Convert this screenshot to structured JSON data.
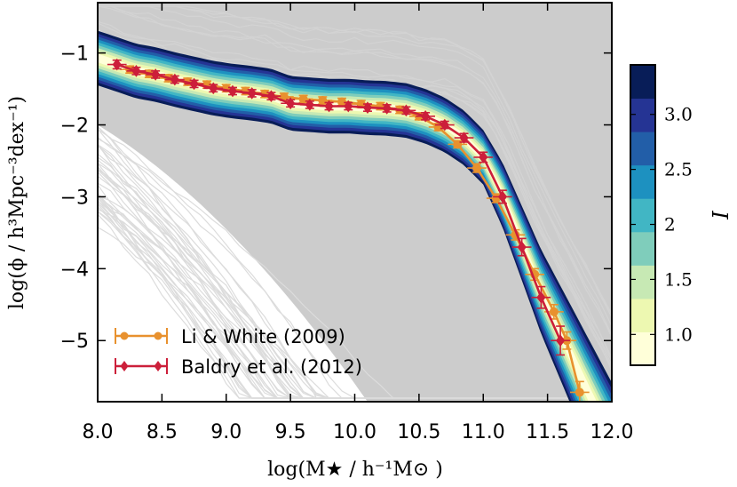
{
  "chart_data": {
    "type": "line",
    "xlabel": "log(M★ / h⁻¹M⊙ )",
    "ylabel": "log(ϕ / h³Mpc⁻³dex⁻¹)",
    "xlim": [
      8.0,
      12.0
    ],
    "ylim": [
      -5.85,
      -0.3
    ],
    "x_ticks": [
      8.0,
      8.5,
      9.0,
      9.5,
      10.0,
      10.5,
      11.0,
      11.5,
      12.0
    ],
    "x_tick_labels": [
      "8.0",
      "8.5",
      "9.0",
      "9.5",
      "10.0",
      "10.5",
      "11.0",
      "11.5",
      "12.0"
    ],
    "y_ticks": [
      -1,
      -2,
      -3,
      -4,
      -5
    ],
    "y_tick_labels": [
      "−1",
      "−2",
      "−3",
      "−4",
      "−5"
    ],
    "series": [
      {
        "name": "Li & White (2009)",
        "color": "#e8912e",
        "x": [
          8.25,
          8.4,
          8.55,
          8.7,
          8.85,
          9.0,
          9.15,
          9.3,
          9.45,
          9.6,
          9.75,
          9.9,
          10.05,
          10.2,
          10.35,
          10.5,
          10.65,
          10.8,
          10.95,
          11.1,
          11.25,
          11.4,
          11.55,
          11.65,
          11.75
        ],
        "y": [
          -1.23,
          -1.29,
          -1.35,
          -1.4,
          -1.44,
          -1.49,
          -1.53,
          -1.57,
          -1.61,
          -1.64,
          -1.66,
          -1.68,
          -1.71,
          -1.74,
          -1.79,
          -1.88,
          -2.03,
          -2.27,
          -2.6,
          -3.02,
          -3.53,
          -4.08,
          -4.6,
          -5.0,
          -5.72
        ],
        "yerr": [
          0.05,
          0.05,
          0.05,
          0.05,
          0.05,
          0.05,
          0.05,
          0.05,
          0.05,
          0.05,
          0.05,
          0.05,
          0.05,
          0.05,
          0.05,
          0.05,
          0.05,
          0.05,
          0.06,
          0.06,
          0.07,
          0.08,
          0.1,
          0.12,
          0.15
        ],
        "xerr": 0.075
      },
      {
        "name": "Baldry et al. (2012)",
        "color": "#cc1f3a",
        "x": [
          8.15,
          8.3,
          8.45,
          8.6,
          8.75,
          8.9,
          9.05,
          9.2,
          9.35,
          9.5,
          9.65,
          9.8,
          9.95,
          10.1,
          10.25,
          10.4,
          10.55,
          10.7,
          10.85,
          11.0,
          11.15,
          11.3,
          11.45,
          11.6
        ],
        "y": [
          -1.16,
          -1.25,
          -1.3,
          -1.37,
          -1.43,
          -1.49,
          -1.53,
          -1.56,
          -1.6,
          -1.7,
          -1.72,
          -1.74,
          -1.74,
          -1.76,
          -1.77,
          -1.8,
          -1.88,
          -2.0,
          -2.18,
          -2.45,
          -3.0,
          -3.7,
          -4.4,
          -5.0
        ],
        "yerr": [
          0.06,
          0.05,
          0.05,
          0.05,
          0.05,
          0.05,
          0.05,
          0.05,
          0.05,
          0.05,
          0.05,
          0.05,
          0.05,
          0.05,
          0.05,
          0.05,
          0.05,
          0.05,
          0.06,
          0.07,
          0.09,
          0.12,
          0.15,
          0.2
        ],
        "xerr": 0.075
      }
    ],
    "legend": [
      "Li & White (2009)",
      "Baldry et al. (2012)"
    ],
    "legend_position": "lower-left",
    "colorbar": {
      "label": "I",
      "range": [
        0.72,
        3.45
      ],
      "ticks": [
        1.0,
        1.5,
        2.0,
        2.5,
        3.0
      ],
      "tick_labels": [
        "1.0",
        "1.5",
        "2",
        "2.5",
        "3.0"
      ],
      "colors": [
        "#ffffd9",
        "#edf8b1",
        "#c7e9b4",
        "#7fcdbb",
        "#41b6c4",
        "#1d91c0",
        "#225ea8",
        "#253494",
        "#081d58"
      ]
    },
    "background_band_color": "#cccccc"
  }
}
